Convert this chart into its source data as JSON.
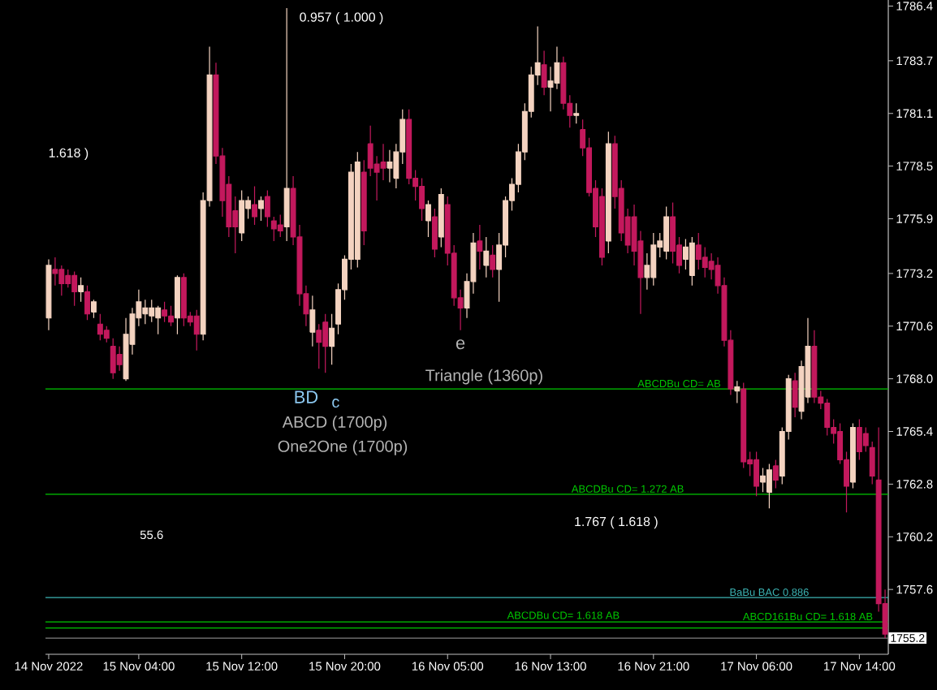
{
  "chart_data": {
    "type": "candlestick",
    "categories": [
      "14 Nov 2022",
      null,
      null,
      null,
      null,
      null,
      null,
      null,
      null,
      null,
      null,
      null,
      null,
      null,
      "15 Nov 04:00",
      null,
      null,
      null,
      null,
      null,
      null,
      null,
      null,
      null,
      null,
      null,
      null,
      null,
      null,
      null,
      "15 Nov 12:00",
      null,
      null,
      null,
      null,
      null,
      null,
      null,
      null,
      null,
      null,
      null,
      null,
      null,
      null,
      null,
      "15 Nov 20:00",
      null,
      null,
      null,
      null,
      null,
      null,
      null,
      null,
      null,
      null,
      null,
      null,
      null,
      null,
      null,
      "16 Nov 05:00",
      null,
      null,
      null,
      null,
      null,
      null,
      null,
      null,
      null,
      null,
      null,
      null,
      null,
      null,
      null,
      "16 Nov 13:00",
      null,
      null,
      null,
      null,
      null,
      null,
      null,
      null,
      null,
      null,
      null,
      null,
      null,
      null,
      null,
      "16 Nov 21:00",
      null,
      null,
      null,
      null,
      null,
      null,
      null,
      null,
      null,
      null,
      null,
      null,
      null,
      null,
      null,
      "17 Nov 06:00",
      null,
      null,
      null,
      null,
      null,
      null,
      null,
      null,
      null,
      null,
      null,
      null,
      null,
      null,
      null,
      "17 Nov 14:00",
      null,
      null,
      null,
      null
    ],
    "ohlc": [
      [
        1771.0,
        1773.9,
        1770.4,
        1773.6
      ],
      [
        1773.4,
        1774.0,
        1772.6,
        1773.2
      ],
      [
        1773.4,
        1773.6,
        1772.1,
        1772.7
      ],
      [
        1773.1,
        1773.4,
        1772.5,
        1772.7
      ],
      [
        1773.1,
        1773.3,
        1771.6,
        1772.3
      ],
      [
        1772.3,
        1773.0,
        1771.8,
        1772.6
      ],
      [
        1772.3,
        1772.6,
        1770.9,
        1771.2
      ],
      [
        1771.3,
        1771.9,
        1771.0,
        1771.8
      ],
      [
        1770.7,
        1771.2,
        1769.9,
        1770.2
      ],
      [
        1770.4,
        1770.6,
        1769.8,
        1770.0
      ],
      [
        1769.6,
        1770.0,
        1768.0,
        1768.3
      ],
      [
        1769.2,
        1769.6,
        1768.4,
        1768.7
      ],
      [
        1768.0,
        1771.0,
        1767.9,
        1770.2
      ],
      [
        1769.7,
        1771.5,
        1769.2,
        1771.2
      ],
      [
        1771.0,
        1772.4,
        1770.6,
        1771.8
      ],
      [
        1771.2,
        1771.9,
        1770.7,
        1771.5
      ],
      [
        1771.1,
        1771.9,
        1770.8,
        1771.5
      ],
      [
        1771.0,
        1771.6,
        1770.2,
        1771.5
      ],
      [
        1771.4,
        1771.8,
        1770.8,
        1771.1
      ],
      [
        1771.1,
        1771.6,
        1770.6,
        1770.8
      ],
      [
        1771.0,
        1773.1,
        1770.2,
        1773.0
      ],
      [
        1773.0,
        1773.2,
        1770.6,
        1771.0
      ],
      [
        1771.1,
        1771.3,
        1770.6,
        1770.8
      ],
      [
        1771.1,
        1771.4,
        1769.4,
        1770.2
      ],
      [
        1770.2,
        1777.2,
        1769.9,
        1776.8
      ],
      [
        1776.8,
        1784.4,
        1776.5,
        1783.0
      ],
      [
        1783.0,
        1783.6,
        1778.6,
        1779.0
      ],
      [
        1779.0,
        1779.4,
        1776.0,
        1776.8
      ],
      [
        1777.6,
        1778.0,
        1775.0,
        1775.5
      ],
      [
        1776.3,
        1777.0,
        1774.2,
        1775.5
      ],
      [
        1775.2,
        1777.3,
        1774.8,
        1776.8
      ],
      [
        1776.4,
        1777.0,
        1775.9,
        1776.8
      ],
      [
        1776.6,
        1777.5,
        1775.6,
        1776.0
      ],
      [
        1776.4,
        1777.0,
        1775.8,
        1776.8
      ],
      [
        1777.0,
        1777.3,
        1775.5,
        1776.0
      ],
      [
        1775.8,
        1776.0,
        1774.8,
        1775.4
      ],
      [
        1775.6,
        1776.1,
        1775.0,
        1775.3
      ],
      [
        1775.5,
        1786.3,
        1774.8,
        1777.4
      ],
      [
        1777.4,
        1778.0,
        1774.6,
        1775.0
      ],
      [
        1775.0,
        1775.6,
        1771.6,
        1772.2
      ],
      [
        1772.2,
        1772.6,
        1770.6,
        1771.2
      ],
      [
        1770.3,
        1772.1,
        1769.6,
        1771.4
      ],
      [
        1770.4,
        1770.7,
        1768.5,
        1769.8
      ],
      [
        1770.8,
        1771.2,
        1768.3,
        1769.6
      ],
      [
        1769.6,
        1771.2,
        1768.7,
        1770.5
      ],
      [
        1770.7,
        1772.7,
        1770.2,
        1772.4
      ],
      [
        1772.4,
        1774.1,
        1771.9,
        1773.9
      ],
      [
        1773.9,
        1778.6,
        1773.4,
        1778.2
      ],
      [
        1773.9,
        1779.2,
        1773.5,
        1778.7
      ],
      [
        1778.2,
        1778.8,
        1774.6,
        1775.3
      ],
      [
        1779.6,
        1780.5,
        1778.0,
        1778.4
      ],
      [
        1778.6,
        1779.0,
        1776.8,
        1778.2
      ],
      [
        1778.7,
        1779.6,
        1777.8,
        1778.4
      ],
      [
        1778.4,
        1779.3,
        1777.7,
        1778.7
      ],
      [
        1777.9,
        1779.6,
        1777.4,
        1779.2
      ],
      [
        1779.2,
        1781.3,
        1778.6,
        1780.8
      ],
      [
        1780.8,
        1781.3,
        1777.6,
        1777.9
      ],
      [
        1777.9,
        1778.3,
        1776.8,
        1777.5
      ],
      [
        1777.5,
        1777.9,
        1775.8,
        1776.4
      ],
      [
        1775.8,
        1776.8,
        1775.0,
        1776.6
      ],
      [
        1776.0,
        1776.4,
        1774.0,
        1774.4
      ],
      [
        1775.0,
        1777.4,
        1774.5,
        1777.1
      ],
      [
        1776.6,
        1777.0,
        1773.6,
        1774.2
      ],
      [
        1774.2,
        1774.6,
        1771.6,
        1772.0
      ],
      [
        1772.0,
        1772.4,
        1770.4,
        1771.5
      ],
      [
        1771.5,
        1773.2,
        1771.0,
        1772.8
      ],
      [
        1772.8,
        1775.2,
        1772.2,
        1774.7
      ],
      [
        1774.8,
        1775.6,
        1773.4,
        1774.3
      ],
      [
        1773.6,
        1775.0,
        1773.0,
        1774.3
      ],
      [
        1774.1,
        1774.6,
        1773.0,
        1773.4
      ],
      [
        1773.4,
        1775.2,
        1771.8,
        1774.6
      ],
      [
        1774.6,
        1777.0,
        1774.0,
        1776.8
      ],
      [
        1776.8,
        1777.9,
        1776.3,
        1777.6
      ],
      [
        1777.6,
        1779.6,
        1777.2,
        1779.2
      ],
      [
        1779.2,
        1781.6,
        1778.8,
        1781.2
      ],
      [
        1781.2,
        1783.4,
        1780.9,
        1783.0
      ],
      [
        1783.0,
        1785.4,
        1782.5,
        1783.6
      ],
      [
        1783.5,
        1784.2,
        1782.0,
        1782.4
      ],
      [
        1782.4,
        1783.4,
        1781.2,
        1782.7
      ],
      [
        1782.6,
        1784.4,
        1782.3,
        1783.6
      ],
      [
        1783.6,
        1783.9,
        1781.3,
        1781.6
      ],
      [
        1781.6,
        1782.0,
        1780.4,
        1781.0
      ],
      [
        1781.0,
        1781.6,
        1780.6,
        1781.1
      ],
      [
        1780.3,
        1780.8,
        1779.0,
        1779.4
      ],
      [
        1779.4,
        1779.9,
        1777.0,
        1777.2
      ],
      [
        1777.4,
        1777.8,
        1775.0,
        1775.5
      ],
      [
        1777.0,
        1777.4,
        1773.6,
        1774.0
      ],
      [
        1774.8,
        1780.2,
        1774.2,
        1779.6
      ],
      [
        1779.6,
        1780.0,
        1776.4,
        1777.0
      ],
      [
        1777.4,
        1777.8,
        1774.8,
        1775.2
      ],
      [
        1776.0,
        1776.4,
        1774.2,
        1774.6
      ],
      [
        1776.0,
        1776.6,
        1773.6,
        1774.3
      ],
      [
        1774.8,
        1775.3,
        1771.2,
        1773.0
      ],
      [
        1773.0,
        1774.2,
        1772.4,
        1773.6
      ],
      [
        1773.0,
        1775.2,
        1772.6,
        1774.6
      ],
      [
        1774.5,
        1775.2,
        1774.0,
        1774.8
      ],
      [
        1774.3,
        1776.5,
        1773.9,
        1776.0
      ],
      [
        1776.0,
        1776.7,
        1773.7,
        1774.3
      ],
      [
        1774.6,
        1775.0,
        1773.2,
        1773.6
      ],
      [
        1773.9,
        1774.9,
        1773.4,
        1774.5
      ],
      [
        1773.1,
        1775.0,
        1772.6,
        1774.7
      ],
      [
        1774.6,
        1775.2,
        1773.4,
        1773.9
      ],
      [
        1774.0,
        1774.5,
        1773.0,
        1773.5
      ],
      [
        1773.8,
        1774.2,
        1772.9,
        1773.4
      ],
      [
        1773.6,
        1774.0,
        1772.2,
        1772.6
      ],
      [
        1772.6,
        1773.0,
        1769.6,
        1769.9
      ],
      [
        1769.9,
        1770.4,
        1767.2,
        1767.5
      ],
      [
        1767.4,
        1767.9,
        1766.8,
        1767.6
      ],
      [
        1767.5,
        1767.8,
        1763.6,
        1763.9
      ],
      [
        1764.0,
        1764.4,
        1763.2,
        1763.8
      ],
      [
        1764.0,
        1764.4,
        1762.2,
        1762.7
      ],
      [
        1762.9,
        1763.6,
        1762.4,
        1763.2
      ],
      [
        1762.4,
        1763.8,
        1761.6,
        1763.5
      ],
      [
        1763.7,
        1764.0,
        1762.6,
        1763.0
      ],
      [
        1763.2,
        1765.6,
        1762.8,
        1765.4
      ],
      [
        1765.4,
        1768.2,
        1765.0,
        1768.0
      ],
      [
        1767.9,
        1768.3,
        1766.1,
        1766.6
      ],
      [
        1766.4,
        1768.9,
        1766.0,
        1768.6
      ],
      [
        1767.1,
        1771.0,
        1766.8,
        1769.6
      ],
      [
        1769.6,
        1770.4,
        1766.8,
        1767.1
      ],
      [
        1767.1,
        1767.4,
        1766.5,
        1766.8
      ],
      [
        1766.8,
        1767.0,
        1765.2,
        1765.6
      ],
      [
        1765.6,
        1766.0,
        1764.8,
        1765.3
      ],
      [
        1765.4,
        1765.8,
        1763.8,
        1764.0
      ],
      [
        1764.0,
        1764.4,
        1761.4,
        1762.7
      ],
      [
        1762.9,
        1765.8,
        1762.6,
        1765.6
      ],
      [
        1765.6,
        1766.0,
        1764.0,
        1764.4
      ],
      [
        1765.3,
        1765.6,
        1764.4,
        1764.7
      ],
      [
        1764.6,
        1764.9,
        1762.8,
        1763.2
      ],
      [
        1763.0,
        1765.6,
        1756.5,
        1756.9
      ],
      [
        1756.9,
        1757.6,
        1755.2,
        1755.4
      ]
    ],
    "colors": [
      "#f4d3c0",
      "#c3195d",
      "#c3195d",
      "#c3195d",
      "#c3195d",
      "#f4d3c0",
      "#c3195d",
      "#f4d3c0",
      "#c3195d",
      "#c3195d",
      "#c3195d",
      "#c3195d",
      "#f4d3c0",
      "#f4d3c0",
      "#f4d3c0",
      "#f4d3c0",
      "#f4d3c0",
      "#f4d3c0",
      "#c3195d",
      "#c3195d",
      "#f4d3c0",
      "#c3195d",
      "#c3195d",
      "#c3195d",
      "#f4d3c0",
      "#f4d3c0",
      "#c3195d",
      "#c3195d",
      "#c3195d",
      "#c3195d",
      "#f4d3c0",
      "#f4d3c0",
      "#c3195d",
      "#f4d3c0",
      "#c3195d",
      "#c3195d",
      "#c3195d",
      "#f4d3c0",
      "#c3195d",
      "#c3195d",
      "#c3195d",
      "#f4d3c0",
      "#c3195d",
      "#c3195d",
      "#f4d3c0",
      "#f4d3c0",
      "#f4d3c0",
      "#f4d3c0",
      "#f4d3c0",
      "#c3195d",
      "#c3195d",
      "#c3195d",
      "#c3195d",
      "#f4d3c0",
      "#f4d3c0",
      "#f4d3c0",
      "#c3195d",
      "#c3195d",
      "#c3195d",
      "#f4d3c0",
      "#c3195d",
      "#f4d3c0",
      "#c3195d",
      "#c3195d",
      "#c3195d",
      "#f4d3c0",
      "#f4d3c0",
      "#c3195d",
      "#f4d3c0",
      "#c3195d",
      "#f4d3c0",
      "#f4d3c0",
      "#f4d3c0",
      "#f4d3c0",
      "#f4d3c0",
      "#f4d3c0",
      "#f4d3c0",
      "#c3195d",
      "#f4d3c0",
      "#f4d3c0",
      "#c3195d",
      "#c3195d",
      "#f4d3c0",
      "#c3195d",
      "#c3195d",
      "#c3195d",
      "#c3195d",
      "#f4d3c0",
      "#c3195d",
      "#c3195d",
      "#c3195d",
      "#c3195d",
      "#c3195d",
      "#f4d3c0",
      "#f4d3c0",
      "#f4d3c0",
      "#f4d3c0",
      "#c3195d",
      "#c3195d",
      "#f4d3c0",
      "#f4d3c0",
      "#c3195d",
      "#c3195d",
      "#c3195d",
      "#c3195d",
      "#c3195d",
      "#c3195d",
      "#f4d3c0",
      "#c3195d",
      "#c3195d",
      "#c3195d",
      "#f4d3c0",
      "#f4d3c0",
      "#c3195d",
      "#f4d3c0",
      "#f4d3c0",
      "#c3195d",
      "#f4d3c0",
      "#f4d3c0",
      "#c3195d",
      "#c3195d",
      "#c3195d",
      "#c3195d",
      "#c3195d",
      "#c3195d",
      "#f4d3c0",
      "#c3195d",
      "#c3195d",
      "#c3195d",
      "#c3195d",
      "#c3195d"
    ],
    "ylim": [
      1754.4,
      1786.7
    ],
    "yticks": [
      1786.4,
      1783.7,
      1781.1,
      1778.5,
      1775.9,
      1773.2,
      1770.6,
      {
        "value": 1768.0,
        "label": "1768.0"
      },
      1765.4,
      1762.8,
      1760.2,
      1757.6
    ],
    "ref_lines": [
      {
        "axis": "y",
        "value": 1767.5,
        "color": "#00c800"
      },
      {
        "axis": "y",
        "value": 1762.3,
        "color": "#00c800"
      },
      {
        "axis": "y",
        "value": 1755.7,
        "color": "#00c800"
      },
      {
        "axis": "y",
        "value": 1756.0,
        "color": "#00c800"
      },
      {
        "axis": "y",
        "value": 1757.2,
        "color": "#3cb4b4"
      },
      {
        "axis": "y",
        "value": 1755.2,
        "label": "1755.2",
        "color": "#808080"
      }
    ],
    "annotations": [
      "0.957 ( 1.000 )",
      "1.618 )",
      "BD",
      "c",
      "ABCD (1700p)",
      "One2One (1700p)",
      "Triangle (1360p)",
      "e",
      "55.6",
      "1.767 ( 1.618 )",
      {
        "text": "ABCDBu CD= AB",
        "y": 1767.5
      },
      {
        "text": "ABCDBu CD= 1.272 AB",
        "y": 1762.3
      },
      {
        "text": "ABCDBu CD= 1.618 AB",
        "y": 1755.7
      },
      {
        "text": "ABCD161Bu CD= 1.618 AB",
        "y": 1756.0
      },
      {
        "text": "BaBu BAC 0.886",
        "y": 1757.2
      }
    ]
  }
}
